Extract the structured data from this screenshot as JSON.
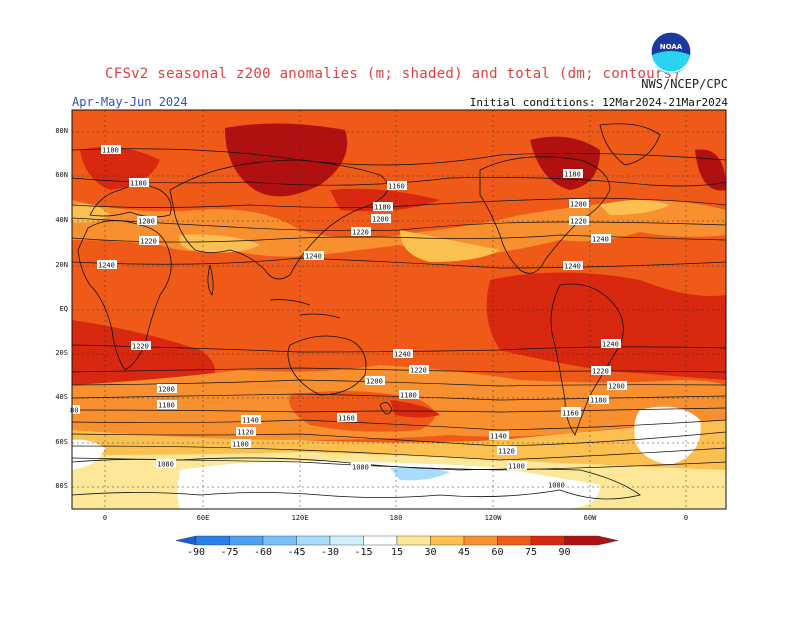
{
  "title": "CFSv2 seasonal z200 anomalies (m; shaded) and total (dm; contours)",
  "agency": "NWS/NCEP/CPC",
  "season": "Apr-May-Jun 2024",
  "initial_conditions": "Initial conditions: 12Mar2024-21Mar2024",
  "logo": {
    "text": "NOAA",
    "icon": "noaa-logo"
  },
  "lat_labels": [
    "80N",
    "60N",
    "40N",
    "20N",
    "EQ",
    "20S",
    "40S",
    "60S",
    "80S"
  ],
  "lon_labels": [
    "0",
    "60E",
    "120E",
    "180",
    "120W",
    "60W",
    "0"
  ],
  "colorbar": {
    "ticks": [
      "-90",
      "-75",
      "-60",
      "-45",
      "-30",
      "-15",
      "15",
      "30",
      "45",
      "60",
      "75",
      "90"
    ],
    "colors": [
      "#1460d8",
      "#2a80ea",
      "#4ea0f4",
      "#78c0fa",
      "#a8dcfc",
      "#d0f0fc",
      "#ffffff",
      "#fde89a",
      "#fbc050",
      "#f89030",
      "#f05a18",
      "#d82810",
      "#b01010"
    ]
  },
  "contour_labels": [
    "1180",
    "1180",
    "1200",
    "1220",
    "1240",
    "1160",
    "1180",
    "1200",
    "1220",
    "1240",
    "1180",
    "1200",
    "1220",
    "1240",
    "1240",
    "1220",
    "1200",
    "1180",
    "80",
    "1140",
    "1120",
    "1100",
    "1080",
    "1240",
    "1220",
    "1200",
    "1180",
    "1160",
    "1180",
    "1140",
    "1120",
    "1100",
    "1080",
    "1240",
    "1220",
    "1200",
    "1180",
    "1160",
    "1080"
  ]
}
